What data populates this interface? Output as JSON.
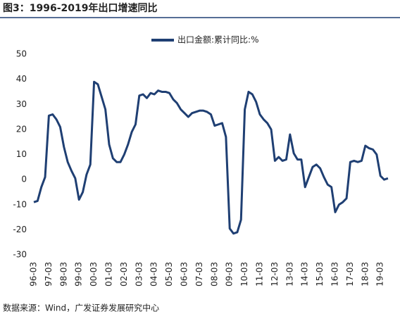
{
  "chart_data": {
    "type": "line",
    "title": "图3：1996-2019年出口增速同比",
    "source": "数据来源：Wind，广发证券发展研究中心",
    "categories": [
      "96-03",
      null,
      null,
      null,
      "97-03",
      null,
      null,
      null,
      "98-03",
      null,
      null,
      null,
      "99-03",
      null,
      null,
      null,
      "00-03",
      null,
      null,
      null,
      "01-03",
      null,
      null,
      null,
      "02-03",
      null,
      null,
      null,
      "03-03",
      null,
      null,
      null,
      "04-03",
      null,
      null,
      null,
      "05-03",
      null,
      null,
      null,
      "06-03",
      null,
      null,
      null,
      "07-03",
      null,
      null,
      null,
      "08-03",
      null,
      null,
      null,
      "09-03",
      null,
      null,
      null,
      "10-03",
      null,
      null,
      null,
      "11-03",
      null,
      null,
      null,
      "12-03",
      null,
      null,
      null,
      "13-03",
      null,
      null,
      null,
      "14-03",
      null,
      null,
      null,
      "15-03",
      null,
      null,
      null,
      "16-03",
      null,
      null,
      null,
      "17-03",
      null,
      null,
      null,
      "18-03",
      null,
      null,
      null,
      "19-03",
      null,
      null
    ],
    "series": [
      {
        "name": "出口金额:累计同比:%",
        "color": "#1f3f73",
        "values": [
          -9,
          -8.5,
          -3,
          1,
          25.5,
          26,
          24,
          21,
          13,
          7,
          3.5,
          0.5,
          -8,
          -5,
          2,
          6,
          39,
          38,
          33,
          28,
          14,
          8.5,
          7,
          7,
          10,
          14,
          19,
          22,
          33.5,
          34,
          32.5,
          34.5,
          34,
          35.5,
          35,
          35,
          34.5,
          32,
          30.5,
          28,
          26.5,
          25,
          26.5,
          27,
          27.5,
          27.5,
          27,
          26,
          21.5,
          22,
          22.5,
          17,
          -19.5,
          -21.5,
          -21,
          -16,
          28,
          35,
          34,
          31,
          26,
          24,
          22.5,
          20,
          7.5,
          9,
          7.5,
          8,
          18,
          10.5,
          8,
          8,
          -3,
          1,
          5,
          6,
          4.5,
          1,
          -2,
          -3,
          -13,
          -10,
          -9,
          -7.5,
          7,
          7.5,
          7,
          7.5,
          13.5,
          12.5,
          12,
          10,
          1.5,
          0,
          0.5
        ]
      }
    ],
    "ylim": [
      -30,
      50
    ],
    "yticks": [
      -30,
      -20,
      -10,
      0,
      10,
      20,
      30,
      40,
      50
    ]
  }
}
